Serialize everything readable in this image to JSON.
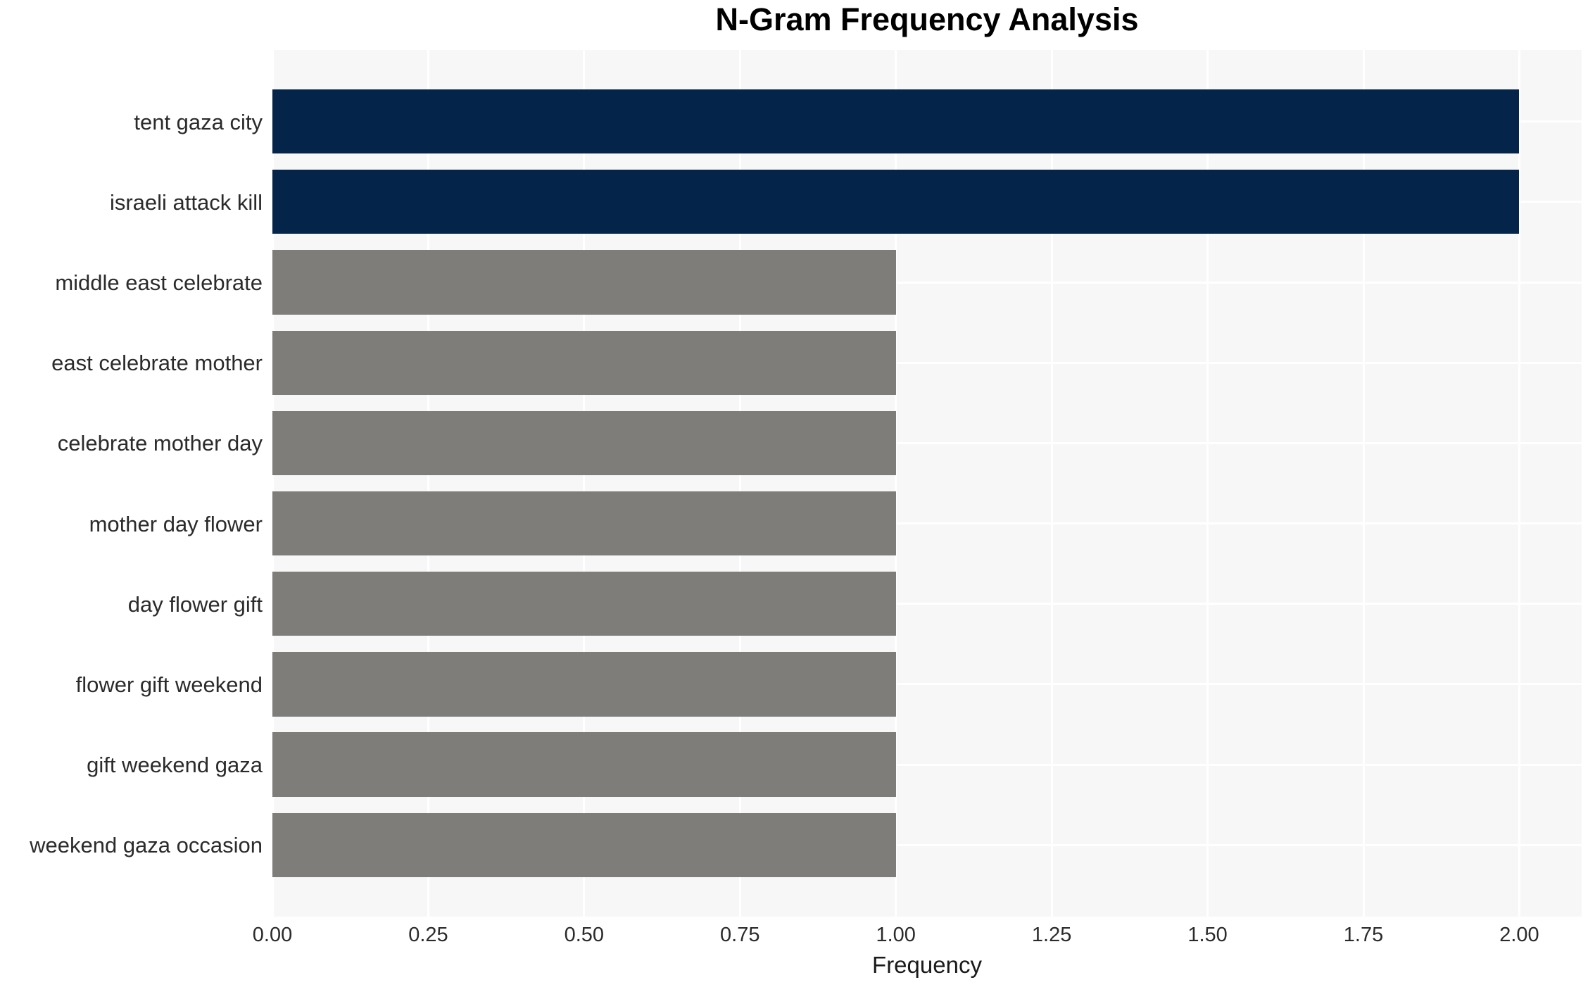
{
  "chart_data": {
    "type": "bar",
    "orientation": "horizontal",
    "title": "N-Gram Frequency Analysis",
    "xlabel": "Frequency",
    "ylabel": "",
    "categories": [
      "tent gaza city",
      "israeli attack kill",
      "middle east celebrate",
      "east celebrate mother",
      "celebrate mother day",
      "mother day flower",
      "day flower gift",
      "flower gift weekend",
      "gift weekend gaza",
      "weekend gaza occasion"
    ],
    "values": [
      2,
      2,
      1,
      1,
      1,
      1,
      1,
      1,
      1,
      1
    ],
    "bar_colors": [
      "#052449",
      "#052449",
      "#7e7d7a",
      "#7e7d7a",
      "#7e7d7a",
      "#7e7d7a",
      "#7e7d7a",
      "#7e7d7a",
      "#7e7d7a",
      "#7e7d7a"
    ],
    "xlim": [
      0,
      2.1
    ],
    "x_ticks": [
      0,
      0.25,
      0.5,
      0.75,
      1.0,
      1.25,
      1.5,
      1.75,
      2.0
    ],
    "x_tick_labels": [
      "0.00",
      "0.25",
      "0.50",
      "0.75",
      "1.00",
      "1.25",
      "1.50",
      "1.75",
      "2.00"
    ],
    "grid": true,
    "legend_position": "none",
    "bar_height_fraction": 0.8,
    "y_margin_units": 0.89,
    "colors": {
      "highlight_bar": "#052449",
      "default_bar": "#7e7d7a",
      "plot_background": "#f7f7f7",
      "gridline": "#ffffff",
      "tick_label": "#2b2b2b",
      "title": "#000000",
      "figure_background": "#ffffff"
    }
  }
}
